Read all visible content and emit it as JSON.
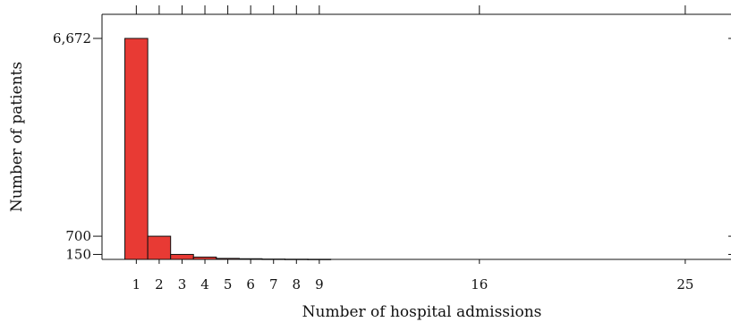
{
  "chart_data": {
    "type": "bar",
    "title": "",
    "xlabel": "Number of hospital admissions",
    "ylabel": "Number of patients",
    "x": [
      1,
      2,
      3,
      4,
      5,
      6,
      7,
      8,
      9
    ],
    "values": [
      6672,
      700,
      150,
      70,
      30,
      20,
      10,
      6,
      4
    ],
    "xlim": [
      -0.5,
      27
    ],
    "ylim": [
      0,
      7400
    ],
    "x_ticks": [
      1,
      2,
      3,
      4,
      5,
      6,
      7,
      8,
      9,
      16,
      25
    ],
    "x_tick_labels": [
      "1",
      "2",
      "3",
      "4",
      "5",
      "6",
      "7",
      "8",
      "9",
      "16",
      "25"
    ],
    "y_ticks": [
      150,
      700,
      6672
    ],
    "y_tick_labels": [
      "150",
      "700",
      "6,672"
    ],
    "bar_color": "#e83a34",
    "grid": false,
    "legend": "none"
  }
}
